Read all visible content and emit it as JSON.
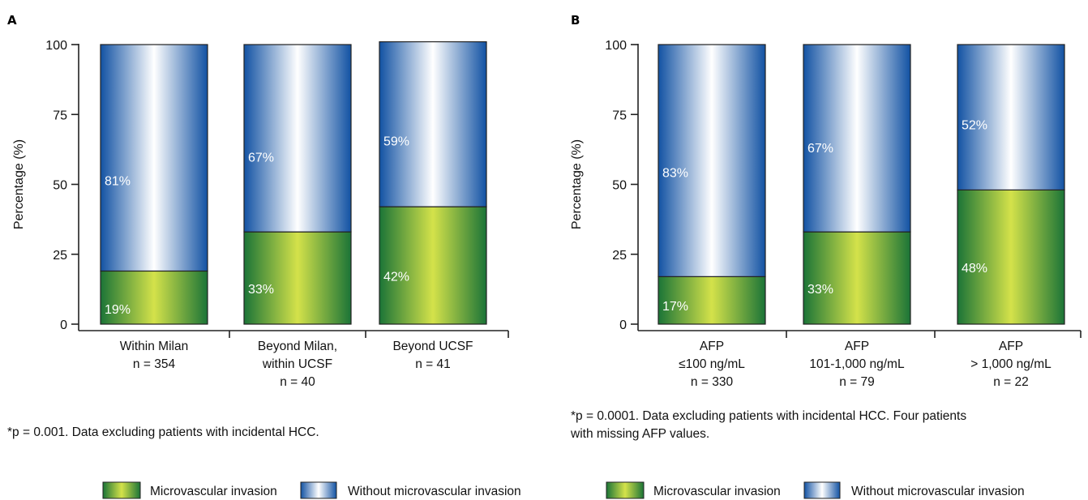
{
  "colors": {
    "green_dark": "#1f7a3a",
    "green_light": "#c8dc3c",
    "blue_dark": "#1556a8",
    "blue_light": "#ffffff",
    "axis": "#222222"
  },
  "legend": {
    "series1": "Microvascular invasion",
    "series2": "Without microvascular invasion"
  },
  "chart_data": [
    {
      "type": "bar",
      "stacked": true,
      "panel": "A",
      "ylabel": "Percentage (%)",
      "ylim": [
        0,
        100
      ],
      "yticks": [
        0,
        25,
        50,
        75,
        100
      ],
      "categories": [
        [
          "Within Milan",
          "n = 354"
        ],
        [
          "Beyond Milan,",
          "within UCSF",
          "n = 40"
        ],
        [
          "Beyond UCSF",
          "n = 41"
        ]
      ],
      "series": [
        {
          "name": "Microvascular invasion",
          "values": [
            19,
            33,
            42
          ],
          "labels": [
            "19%",
            "33%",
            "42%"
          ]
        },
        {
          "name": "Without microvascular invasion",
          "values": [
            81,
            67,
            59
          ],
          "labels": [
            "81%",
            "67%",
            "59%"
          ]
        }
      ],
      "footnote": "*p = 0.001. Data excluding patients with incidental HCC."
    },
    {
      "type": "bar",
      "stacked": true,
      "panel": "B",
      "ylabel": "Percentage (%)",
      "ylim": [
        0,
        100
      ],
      "yticks": [
        0,
        25,
        50,
        75,
        100
      ],
      "categories": [
        [
          "AFP",
          "≤100  ng/mL",
          "n = 330"
        ],
        [
          "AFP",
          "101-1,000  ng/mL",
          "n = 79"
        ],
        [
          "AFP",
          "> 1,000  ng/mL",
          "n = 22"
        ]
      ],
      "series": [
        {
          "name": "Microvascular invasion",
          "values": [
            17,
            33,
            48
          ],
          "labels": [
            "17%",
            "33%",
            "48%"
          ]
        },
        {
          "name": "Without microvascular invasion",
          "values": [
            83,
            67,
            52
          ],
          "labels": [
            "83%",
            "67%",
            "52%"
          ]
        }
      ],
      "footnote": [
        "*p = 0.0001. Data excluding patients with incidental HCC. Four patients",
        "with missing AFP values."
      ]
    }
  ]
}
